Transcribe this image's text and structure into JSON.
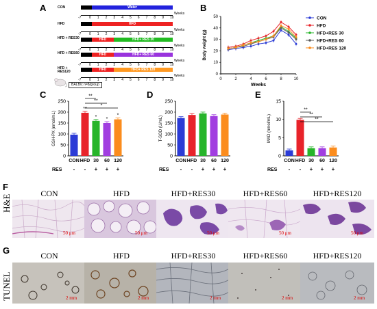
{
  "panel_letters": {
    "a": "A",
    "b": "B",
    "c": "C",
    "d": "D",
    "e": "E",
    "f": "F",
    "g": "G"
  },
  "design": {
    "rows": [
      {
        "label": "CON",
        "phase1": "",
        "phase2": "Water",
        "p2color": "#2222dd"
      },
      {
        "label": "HFD",
        "phase1": "",
        "phase2": "HFD",
        "p2color": "#ee2222"
      },
      {
        "label": "HFD + RES30",
        "phase1": "HFD",
        "phase2": "HFD+ RES 30",
        "p2color": "#22bb22"
      },
      {
        "label": "HFD + RES60",
        "phase1": "HFD",
        "phase2": "HFD+ RES 60",
        "p2color": "#9933dd"
      },
      {
        "label": "HFD + RES120",
        "phase1": "HFD",
        "phase2": "HFD+ RES 120",
        "p2color": "#ff9922"
      }
    ],
    "ticks": [
      "-7",
      "0",
      "1",
      "2",
      "3",
      "4",
      "5",
      "6",
      "7",
      "8",
      "9",
      "10"
    ],
    "weeks_label": "Weeks",
    "mouse_note": "BALB/c  n=8/group"
  },
  "colors": {
    "con": "#2b3bd6",
    "hfd": "#e8232a",
    "res30": "#27b52a",
    "res60": "#a13ee0",
    "res120": "#fb8c1d",
    "black": "#000000"
  },
  "chart_data": [
    {
      "type": "line",
      "panel": "B",
      "title": "",
      "xlabel": "Weeks",
      "ylabel": "Body weight (g)",
      "xlim": [
        0,
        10
      ],
      "ylim": [
        0,
        50
      ],
      "x": [
        1,
        2,
        3,
        4,
        5,
        6,
        7,
        8,
        9,
        10
      ],
      "xticks": [
        "0",
        "2",
        "4",
        "6",
        "8",
        "10"
      ],
      "yticks": [
        "0",
        "10",
        "20",
        "30",
        "40",
        "50"
      ],
      "series": [
        {
          "name": "CON",
          "color": "#2b3bd6",
          "values": [
            21,
            22,
            23,
            24,
            26,
            27,
            29,
            38,
            34,
            26
          ]
        },
        {
          "name": "HFD",
          "color": "#e8232a",
          "values": [
            23,
            24,
            26,
            29,
            31,
            33,
            37,
            45,
            41,
            34
          ]
        },
        {
          "name": "HFD+RES 30",
          "color": "#27b52a",
          "values": [
            22,
            23,
            25,
            27,
            29,
            31,
            33,
            41,
            37,
            31
          ]
        },
        {
          "name": "HFD+RES 60",
          "color": "#5a5a5a",
          "values": [
            22,
            23,
            24,
            26,
            28,
            30,
            32,
            40,
            36,
            30
          ]
        },
        {
          "name": "HFD+RES 120",
          "color": "#fb8c1d",
          "values": [
            22,
            23,
            25,
            27,
            28,
            30,
            33,
            42,
            39,
            32
          ]
        }
      ],
      "legend_position": "right"
    },
    {
      "type": "bar",
      "panel": "C",
      "ylabel": "GSH-PX (nmol/mL)",
      "ylim": [
        0,
        250
      ],
      "yticks": [
        "0",
        "50",
        "100",
        "150",
        "200",
        "250"
      ],
      "categories": [
        "CON",
        "HFD",
        "30",
        "60",
        "120"
      ],
      "values": [
        97,
        197,
        160,
        150,
        167
      ],
      "stars": [
        "",
        "**",
        "*",
        "*",
        "*"
      ],
      "sig_brackets": [
        "**",
        "**",
        "*"
      ],
      "res_row": [
        "-",
        "-",
        "+",
        "+",
        "+"
      ]
    },
    {
      "type": "bar",
      "panel": "D",
      "ylabel": "T-SOD (U/mL)",
      "ylim": [
        0,
        250
      ],
      "yticks": [
        "0",
        "50",
        "100",
        "150",
        "200",
        "250"
      ],
      "categories": [
        "CON",
        "HFD",
        "30",
        "60",
        "120"
      ],
      "values": [
        173,
        187,
        194,
        182,
        189
      ],
      "stars": [
        "",
        "",
        "",
        "",
        ""
      ],
      "res_row": [
        "-",
        "-",
        "+",
        "+",
        "+"
      ]
    },
    {
      "type": "bar",
      "panel": "E",
      "ylabel": "MAD (nmol/mL)",
      "ylim": [
        0,
        15
      ],
      "yticks": [
        "0",
        "5",
        "10",
        "15"
      ],
      "categories": [
        "CON",
        "HFD",
        "30",
        "60",
        "120"
      ],
      "values": [
        1.5,
        9.9,
        2.1,
        2.1,
        2.3
      ],
      "stars": [
        "",
        "",
        "",
        "",
        ""
      ],
      "sig_brackets": [
        "**",
        "**",
        "**"
      ],
      "res_row": [
        "-",
        "-",
        "+",
        "+",
        "+"
      ]
    }
  ],
  "res_label": "RES",
  "he_row": {
    "side_label": "H&E",
    "titles": [
      "CON",
      "HFD",
      "HFD+RES30",
      "HFD+RES60",
      "HFD+RES120"
    ],
    "scale": "50 μm"
  },
  "tunel_row": {
    "side_label": "TUNEL",
    "titles": [
      "CON",
      "HFD",
      "HFD+RES30",
      "HFD+RES60",
      "HFD+RES120"
    ],
    "scale": "2 mm"
  }
}
